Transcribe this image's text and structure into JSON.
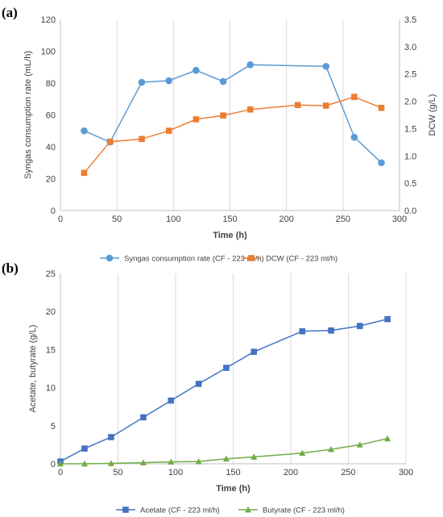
{
  "chart_data": [
    {
      "panel_label": "(a)",
      "type": "line",
      "title": "",
      "xlabel": "Time (h)",
      "ylabel": "Syngas consumption rate (mL/h)",
      "y2label": "DCW (g/L)",
      "xlim": [
        0,
        300
      ],
      "ylim": [
        0,
        120
      ],
      "y2lim": [
        0,
        3.5
      ],
      "xticks": [
        "0",
        "50",
        "100",
        "150",
        "200",
        "250",
        "300"
      ],
      "yticks": [
        "0",
        "20",
        "40",
        "60",
        "80",
        "100",
        "120"
      ],
      "y2ticks": [
        "0.0",
        "0.5",
        "1.0",
        "1.5",
        "2.0",
        "2.5",
        "3.0",
        "3.5"
      ],
      "grid": "vertical",
      "legend_position": "bottom",
      "series": [
        {
          "name": "Syngas consumption rate (CF - 223 ml/h)",
          "axis": "left",
          "color": "#5b9bd5",
          "marker": "circle",
          "x": [
            21,
            44,
            72,
            96,
            120,
            144,
            168,
            235,
            260,
            284
          ],
          "y": [
            50,
            43,
            80.5,
            81.5,
            88,
            81,
            91.5,
            90.5,
            46,
            30
          ]
        },
        {
          "name": "DCW (CF - 223 ml/h)",
          "axis": "right",
          "color": "#ed7d31",
          "marker": "square",
          "x": [
            21,
            44,
            72,
            96,
            120,
            144,
            168,
            210,
            235,
            260,
            284
          ],
          "y": [
            0.69,
            1.26,
            1.31,
            1.46,
            1.67,
            1.74,
            1.85,
            1.93,
            1.92,
            2.08,
            1.88
          ]
        }
      ]
    },
    {
      "panel_label": "(b)",
      "type": "line",
      "title": "",
      "xlabel": "Time (h)",
      "ylabel": "Acetate, butyrate (g/L)",
      "xlim": [
        0,
        300
      ],
      "ylim": [
        0,
        25
      ],
      "xticks": [
        "0",
        "50",
        "100",
        "150",
        "200",
        "250",
        "300"
      ],
      "yticks": [
        "0",
        "5",
        "10",
        "15",
        "20",
        "25"
      ],
      "grid": "vertical",
      "legend_position": "bottom",
      "series": [
        {
          "name": "Acetate (CF - 223 ml/h)",
          "color": "#4472c4",
          "marker": "square",
          "x": [
            0,
            21,
            44,
            72,
            96,
            120,
            144,
            168,
            210,
            235,
            260,
            284
          ],
          "y": [
            0.3,
            2.0,
            3.5,
            6.1,
            8.3,
            10.5,
            12.6,
            14.7,
            17.4,
            17.5,
            18.1,
            19.0
          ]
        },
        {
          "name": "Butyrate (CF - 223 ml/h)",
          "color": "#70ad47",
          "marker": "triangle",
          "x": [
            0,
            21,
            44,
            72,
            96,
            120,
            144,
            168,
            210,
            235,
            260,
            284
          ],
          "y": [
            0.0,
            0.0,
            0.05,
            0.15,
            0.25,
            0.3,
            0.65,
            0.9,
            1.4,
            1.9,
            2.5,
            3.3
          ]
        }
      ]
    }
  ]
}
